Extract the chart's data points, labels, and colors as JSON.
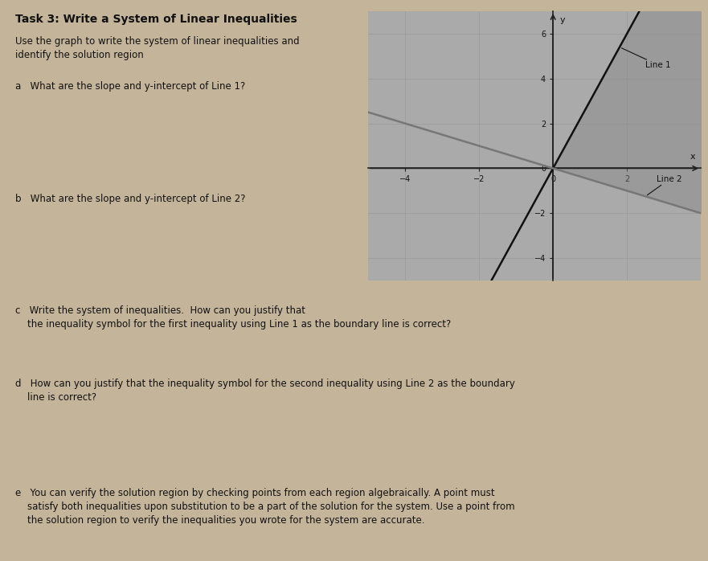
{
  "bg_color": "#c4b49a",
  "title": "Task 3: Write a System of Linear Inequalities",
  "subtitle": "Use the graph to write the system of linear inequalities and\nidentify the solution region",
  "questions": [
    "a   What are the slope and y-intercept of Line 1?",
    "b   What are the slope and y-intercept of Line 2?",
    "c   Write the system of inequalities.  How can you justify that\n    the inequality symbol for the first inequality using Line 1 as the boundary line is correct?",
    "d   How can you justify that the inequality symbol for the second inequality using Line 2 as the boundary\n    line is correct?",
    "e   You can verify the solution region by checking points from each region algebraically. A point must\n    satisfy both inequalities upon substitution to be a part of the solution for the system. Use a point from\n    the solution region to verify the inequalities you wrote for the system are accurate."
  ],
  "graph_xlim": [
    -5,
    4
  ],
  "graph_ylim": [
    -5,
    7
  ],
  "graph_xticks": [
    -4,
    -2,
    0,
    2
  ],
  "graph_yticks": [
    -4,
    -2,
    0,
    2,
    4,
    6
  ],
  "line1_slope": 3,
  "line1_intercept": 0,
  "line2_slope": -0.5,
  "line2_intercept": 0,
  "line1_label": "Line 1",
  "line2_label": "Line 2",
  "line1_color": "#111111",
  "line2_color": "#777777",
  "shade_color": "#888888",
  "shade_alpha": 0.45,
  "graph_bg": "#aaaaaa",
  "axis_color": "#222222",
  "grid_color": "#888888",
  "axis_label_x": "x",
  "axis_label_y": "y"
}
